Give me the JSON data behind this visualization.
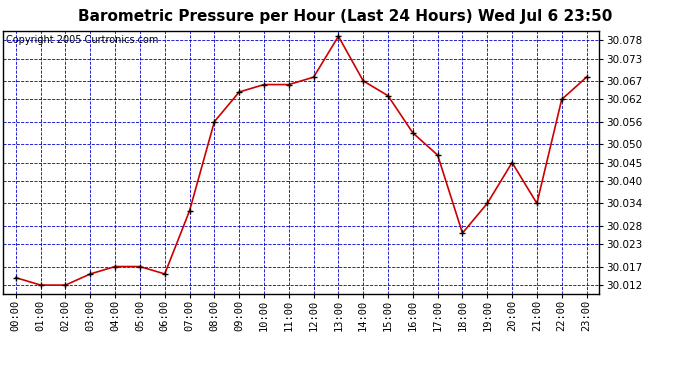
{
  "title": "Barometric Pressure per Hour (Last 24 Hours) Wed Jul 6 23:50",
  "copyright": "Copyright 2005 Curtronics.com",
  "x_labels": [
    "00:00",
    "01:00",
    "02:00",
    "03:00",
    "04:00",
    "05:00",
    "06:00",
    "07:00",
    "08:00",
    "09:00",
    "10:00",
    "11:00",
    "12:00",
    "13:00",
    "14:00",
    "15:00",
    "16:00",
    "17:00",
    "18:00",
    "19:00",
    "20:00",
    "21:00",
    "22:00",
    "23:00"
  ],
  "y_values": [
    30.014,
    30.012,
    30.012,
    30.015,
    30.017,
    30.017,
    30.015,
    30.032,
    30.056,
    30.064,
    30.066,
    30.066,
    30.068,
    30.079,
    30.067,
    30.063,
    30.053,
    30.047,
    30.026,
    30.034,
    30.045,
    30.034,
    30.062,
    30.068
  ],
  "ylim_min": 30.0095,
  "ylim_max": 30.0805,
  "y_ticks": [
    30.012,
    30.017,
    30.023,
    30.028,
    30.034,
    30.04,
    30.045,
    30.05,
    30.056,
    30.062,
    30.067,
    30.073,
    30.078
  ],
  "line_color": "#cc0000",
  "marker_color": "#000000",
  "bg_color": "#ffffff",
  "grid_color": "#0000cc",
  "title_fontsize": 11,
  "copyright_fontsize": 7,
  "tick_fontsize": 7.5
}
